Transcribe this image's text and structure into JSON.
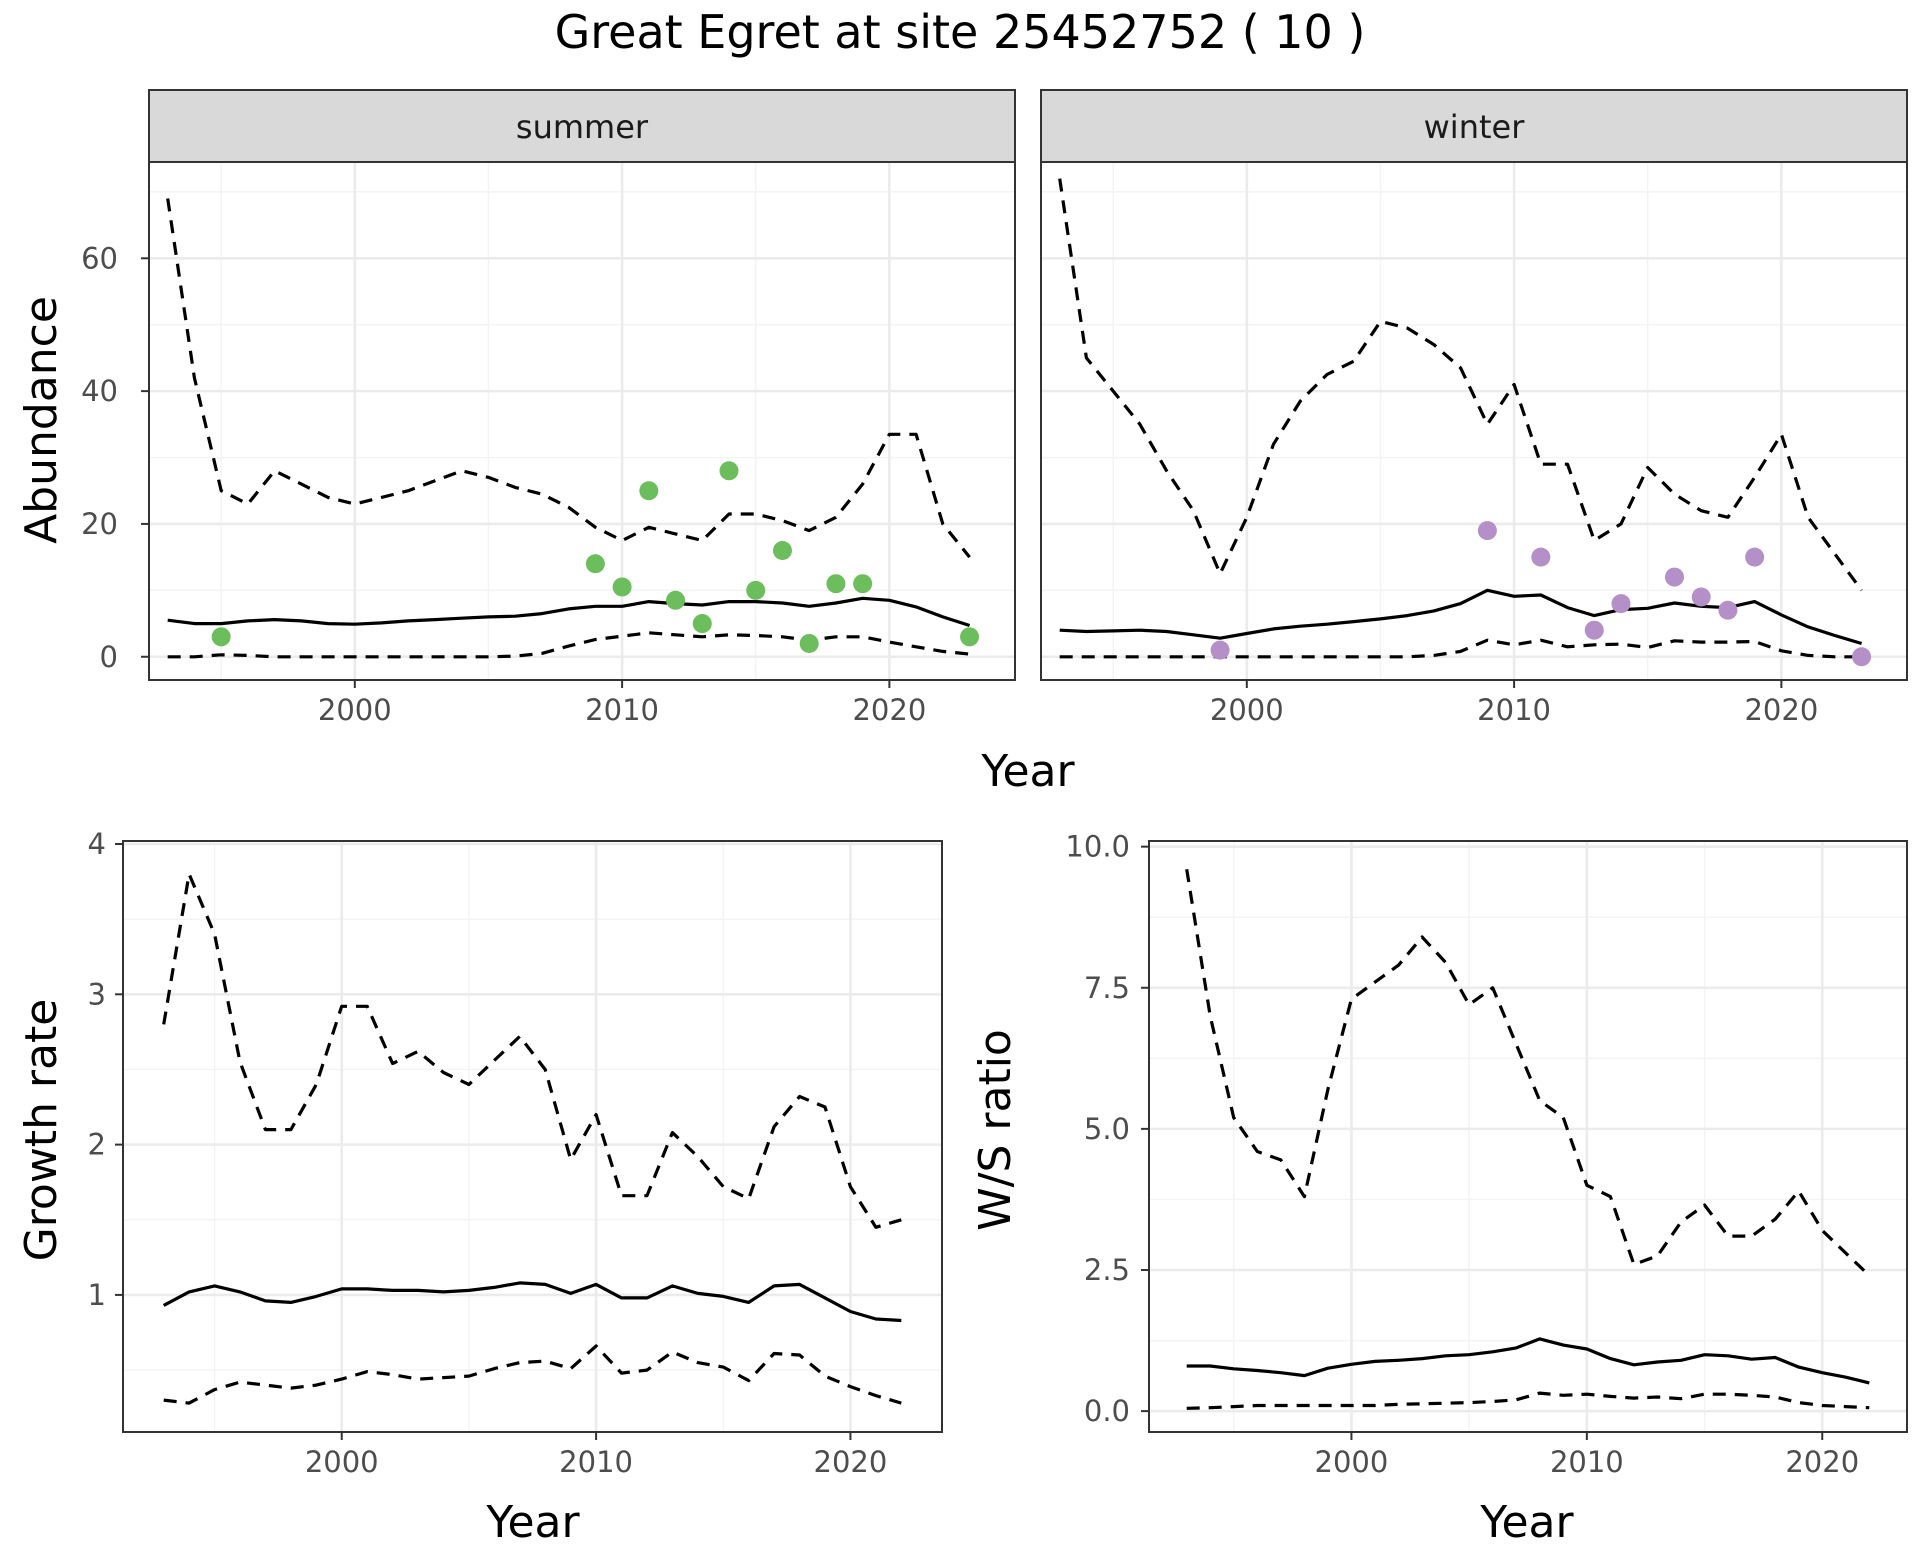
{
  "title": "Great Egret at site 25452752 ( 10 )",
  "colors": {
    "summer_points": "#6cbd5c",
    "winter_points": "#b48fc8",
    "lines": "#000000"
  },
  "chart_data": [
    {
      "type": "line",
      "panel": "summer",
      "strip": "summer",
      "xlabel": "Year",
      "ylabel": "Abundance",
      "xlim": [
        1992.3,
        2024.7
      ],
      "ylim": [
        -3.5,
        74.5
      ],
      "xticks": [
        2000,
        2010,
        2020
      ],
      "yticks": [
        0,
        20,
        40,
        60
      ],
      "grid": true,
      "point_color": "#6cbd5c",
      "x": [
        1993,
        1994,
        1995,
        1996,
        1997,
        1998,
        1999,
        2000,
        2001,
        2002,
        2003,
        2004,
        2005,
        2006,
        2007,
        2008,
        2009,
        2010,
        2011,
        2012,
        2013,
        2014,
        2015,
        2016,
        2017,
        2018,
        2019,
        2020,
        2021,
        2022,
        2023
      ],
      "series": [
        {
          "role": "upper",
          "style": "dashed",
          "values": [
            69,
            42,
            25,
            23,
            28,
            26,
            24,
            23,
            24,
            25,
            26.5,
            28,
            27,
            25.5,
            24.5,
            22.5,
            19.5,
            17.5,
            19.5,
            18.5,
            17.5,
            21.5,
            21.5,
            20.5,
            19,
            21,
            26,
            33.5,
            33.5,
            20,
            15
          ]
        },
        {
          "role": "median",
          "style": "solid",
          "values": [
            5.5,
            5,
            5,
            5.4,
            5.6,
            5.4,
            5,
            4.9,
            5.1,
            5.4,
            5.6,
            5.8,
            6,
            6.1,
            6.5,
            7.2,
            7.6,
            7.6,
            8.3,
            8,
            7.8,
            8.3,
            8.3,
            8.1,
            7.6,
            8.1,
            8.8,
            8.5,
            7.5,
            6,
            4.7
          ]
        },
        {
          "role": "lower",
          "style": "dashed",
          "values": [
            0,
            0,
            0.3,
            0.2,
            0,
            0,
            0,
            0,
            0,
            0,
            0,
            0,
            0,
            0.1,
            0.5,
            1.6,
            2.6,
            3.1,
            3.6,
            3.3,
            3,
            3.3,
            3.2,
            3,
            2.5,
            3,
            3,
            2.2,
            1.5,
            0.8,
            0.4
          ]
        }
      ],
      "points": [
        [
          1995,
          3
        ],
        [
          2009,
          14
        ],
        [
          2010,
          10.5
        ],
        [
          2011,
          25
        ],
        [
          2012,
          8.5
        ],
        [
          2013,
          5
        ],
        [
          2014,
          28
        ],
        [
          2015,
          10
        ],
        [
          2016,
          16
        ],
        [
          2017,
          2
        ],
        [
          2018,
          11
        ],
        [
          2019,
          11
        ],
        [
          2023,
          3
        ]
      ]
    },
    {
      "type": "line",
      "panel": "winter",
      "strip": "winter",
      "xlabel": "Year",
      "ylabel": "Abundance",
      "xlim": [
        1992.3,
        2024.7
      ],
      "ylim": [
        -3.5,
        74.5
      ],
      "xticks": [
        2000,
        2010,
        2020
      ],
      "yticks": [
        0,
        20,
        40,
        60
      ],
      "grid": true,
      "point_color": "#b48fc8",
      "x": [
        1993,
        1994,
        1995,
        1996,
        1997,
        1998,
        1999,
        2000,
        2001,
        2002,
        2003,
        2004,
        2005,
        2006,
        2007,
        2008,
        2009,
        2010,
        2011,
        2012,
        2013,
        2014,
        2015,
        2016,
        2017,
        2018,
        2019,
        2020,
        2021,
        2022,
        2023
      ],
      "series": [
        {
          "role": "upper",
          "style": "dashed",
          "values": [
            72,
            45,
            40,
            35,
            28,
            22,
            12.5,
            21,
            32,
            38.5,
            42.5,
            44.5,
            50.5,
            49.5,
            47,
            43.5,
            35,
            41,
            29,
            29,
            17.5,
            20,
            28.5,
            24.5,
            22,
            21,
            27,
            33.5,
            21,
            15.5,
            10
          ]
        },
        {
          "role": "median",
          "style": "solid",
          "values": [
            4,
            3.8,
            3.9,
            4,
            3.8,
            3.3,
            2.8,
            3.5,
            4.2,
            4.6,
            4.9,
            5.3,
            5.7,
            6.2,
            6.9,
            8,
            10,
            9.1,
            9.3,
            7.4,
            6.2,
            7.1,
            7.3,
            8.1,
            7.6,
            7.4,
            8.3,
            6.3,
            4.5,
            3.2,
            2
          ]
        },
        {
          "role": "lower",
          "style": "dashed",
          "values": [
            0,
            0,
            0,
            0,
            0,
            0,
            0,
            0,
            0,
            0,
            0,
            0,
            0,
            0,
            0.2,
            0.8,
            2.5,
            1.8,
            2.5,
            1.5,
            1.8,
            1.9,
            1.4,
            2.4,
            2.2,
            2.2,
            2.3,
            0.9,
            0.2,
            0,
            0
          ]
        }
      ],
      "points": [
        [
          1999,
          1
        ],
        [
          2009,
          19
        ],
        [
          2011,
          15
        ],
        [
          2013,
          4
        ],
        [
          2014,
          8
        ],
        [
          2016,
          12
        ],
        [
          2017,
          9
        ],
        [
          2018,
          7
        ],
        [
          2019,
          15
        ],
        [
          2023,
          0
        ]
      ]
    },
    {
      "type": "line",
      "panel": "growth",
      "strip": "",
      "xlabel": "Year",
      "ylabel": "Growth rate",
      "xlim": [
        1991.4,
        2023.6
      ],
      "ylim": [
        0.088,
        4.02
      ],
      "xticks": [
        2000,
        2010,
        2020
      ],
      "yticks": [
        1,
        2,
        3,
        4
      ],
      "grid": true,
      "x": [
        1993,
        1994,
        1995,
        1996,
        1997,
        1998,
        1999,
        2000,
        2001,
        2002,
        2003,
        2004,
        2005,
        2006,
        2007,
        2008,
        2009,
        2010,
        2011,
        2012,
        2013,
        2014,
        2015,
        2016,
        2017,
        2018,
        2019,
        2020,
        2021,
        2022
      ],
      "series": [
        {
          "role": "upper",
          "style": "dashed",
          "values": [
            2.8,
            3.8,
            3.4,
            2.55,
            2.1,
            2.1,
            2.4,
            2.92,
            2.92,
            2.54,
            2.62,
            2.48,
            2.4,
            2.56,
            2.72,
            2.5,
            1.9,
            2.2,
            1.66,
            1.66,
            2.08,
            1.92,
            1.72,
            1.64,
            2.12,
            2.32,
            2.25,
            1.72,
            1.45,
            1.5
          ]
        },
        {
          "role": "median",
          "style": "solid",
          "values": [
            0.93,
            1.02,
            1.06,
            1.02,
            0.96,
            0.95,
            0.99,
            1.04,
            1.04,
            1.03,
            1.03,
            1.02,
            1.03,
            1.05,
            1.08,
            1.07,
            1.01,
            1.07,
            0.98,
            0.98,
            1.06,
            1.01,
            0.99,
            0.95,
            1.06,
            1.07,
            0.98,
            0.89,
            0.84,
            0.83
          ]
        },
        {
          "role": "lower",
          "style": "dashed",
          "values": [
            0.3,
            0.28,
            0.37,
            0.42,
            0.4,
            0.38,
            0.4,
            0.44,
            0.49,
            0.47,
            0.44,
            0.45,
            0.46,
            0.51,
            0.55,
            0.56,
            0.51,
            0.66,
            0.48,
            0.5,
            0.62,
            0.55,
            0.52,
            0.43,
            0.61,
            0.6,
            0.46,
            0.39,
            0.33,
            0.28
          ]
        }
      ]
    },
    {
      "type": "line",
      "panel": "ratio",
      "strip": "",
      "xlabel": "Year",
      "ylabel": "W/S ratio",
      "xlim": [
        1991.4,
        2023.6
      ],
      "ylim": [
        -0.37,
        10.1
      ],
      "xticks": [
        2000,
        2010,
        2020
      ],
      "yticks": [
        0.0,
        2.5,
        5.0,
        7.5,
        10.0
      ],
      "ytick_labels": [
        "0.0",
        "2.5",
        "5.0",
        "7.5",
        "10.0"
      ],
      "grid": true,
      "x": [
        1993,
        1994,
        1995,
        1996,
        1997,
        1998,
        1999,
        2000,
        2001,
        2002,
        2003,
        2004,
        2005,
        2006,
        2007,
        2008,
        2009,
        2010,
        2011,
        2012,
        2013,
        2014,
        2015,
        2016,
        2017,
        2018,
        2019,
        2020,
        2021,
        2022
      ],
      "series": [
        {
          "role": "upper",
          "style": "dashed",
          "values": [
            9.6,
            7.0,
            5.2,
            4.6,
            4.45,
            3.8,
            5.7,
            7.3,
            7.6,
            7.9,
            8.4,
            7.95,
            7.2,
            7.5,
            6.5,
            5.5,
            5.2,
            4.0,
            3.8,
            2.6,
            2.75,
            3.35,
            3.65,
            3.1,
            3.1,
            3.4,
            3.9,
            3.2,
            2.8,
            2.4
          ]
        },
        {
          "role": "median",
          "style": "solid",
          "values": [
            0.8,
            0.8,
            0.75,
            0.72,
            0.68,
            0.63,
            0.76,
            0.83,
            0.88,
            0.9,
            0.93,
            0.98,
            1.0,
            1.05,
            1.12,
            1.28,
            1.17,
            1.1,
            0.93,
            0.82,
            0.87,
            0.9,
            1.0,
            0.98,
            0.92,
            0.95,
            0.78,
            0.68,
            0.6,
            0.5
          ]
        },
        {
          "role": "lower",
          "style": "dashed",
          "values": [
            0.05,
            0.06,
            0.08,
            0.1,
            0.1,
            0.1,
            0.1,
            0.1,
            0.1,
            0.12,
            0.13,
            0.14,
            0.15,
            0.17,
            0.2,
            0.32,
            0.28,
            0.3,
            0.26,
            0.23,
            0.25,
            0.22,
            0.3,
            0.3,
            0.28,
            0.25,
            0.15,
            0.1,
            0.08,
            0.06
          ]
        }
      ]
    }
  ]
}
